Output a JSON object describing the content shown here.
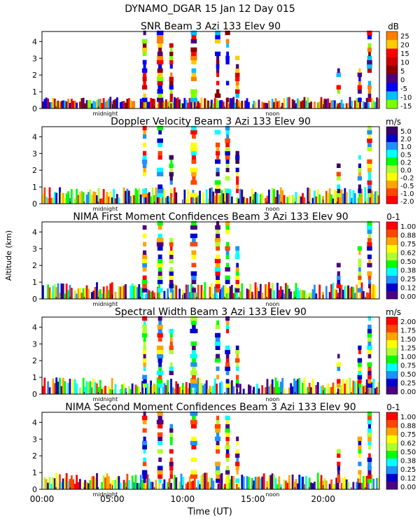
{
  "header": {
    "title": "DYNAMO_DGAR  15 Jan 12 Day 015"
  },
  "x_axis": {
    "label": "Time (UT)",
    "tick_labels": [
      "00:00",
      "05:00",
      "10:00",
      "15:00",
      "20:00"
    ],
    "markers": [
      "midnight",
      "noon"
    ]
  },
  "y_axis": {
    "label": "Altitude (km)",
    "tick_labels": [
      "0",
      "1",
      "2",
      "3",
      "4"
    ]
  },
  "chart_data": [
    {
      "type": "heatmap",
      "title": "SNR Beam 3 Azi 133 Elev 90",
      "units": "dB",
      "xlabel": "Time (UT)",
      "ylabel": "Altitude (km)",
      "xlim": [
        0,
        24
      ],
      "ylim": [
        0,
        4.6
      ],
      "colorbar_ticks": [
        "25",
        "20",
        "15",
        "10",
        "5",
        "0",
        "-5",
        "-10",
        "-15"
      ],
      "colorbar_colors": [
        "#ff7f00",
        "#ffcc00",
        "#ff0000",
        "#cc0000",
        "#8b0000",
        "#4b0082",
        "#0000ff",
        "#00bfff",
        "#7fff00"
      ]
    },
    {
      "type": "heatmap",
      "title": "Doppler Velocity Beam 3 Azi 133 Elev 90",
      "units": "m/s",
      "xlabel": "Time (UT)",
      "ylabel": "Altitude (km)",
      "xlim": [
        0,
        24
      ],
      "ylim": [
        0,
        4.6
      ],
      "colorbar_ticks": [
        "5.0",
        "2.0",
        "1.0",
        "0.5",
        "0.2",
        "0.0",
        "-0.2",
        "-0.5",
        "-1.0",
        "-2.0"
      ],
      "colorbar_colors": [
        "#3a0066",
        "#0000cc",
        "#1e90ff",
        "#00ffff",
        "#00ff00",
        "#adff2f",
        "#ffff00",
        "#ffa500",
        "#ff4500",
        "#ff0000"
      ]
    },
    {
      "type": "heatmap",
      "title": "NIMA First Moment Confidences Beam 3 Azi 133 Elev 90",
      "units": "0-1",
      "xlabel": "Time (UT)",
      "ylabel": "Altitude (km)",
      "xlim": [
        0,
        24
      ],
      "ylim": [
        0,
        4.6
      ],
      "colorbar_ticks": [
        "1.00",
        "0.88",
        "0.75",
        "0.62",
        "0.50",
        "0.38",
        "0.25",
        "0.12",
        "0.00"
      ],
      "colorbar_colors": [
        "#ff0000",
        "#ff4500",
        "#ffa500",
        "#ffff00",
        "#adff2f",
        "#00ff00",
        "#00ffff",
        "#1e90ff",
        "#0000cc",
        "#4b0082"
      ]
    },
    {
      "type": "heatmap",
      "title": "Spectral Width Beam 3 Azi 133 Elev 90",
      "units": "m/s",
      "xlabel": "Time (UT)",
      "ylabel": "Altitude (km)",
      "xlim": [
        0,
        24
      ],
      "ylim": [
        0,
        4.6
      ],
      "colorbar_ticks": [
        "2.00",
        "1.75",
        "1.50",
        "1.25",
        "1.00",
        "0.75",
        "0.50",
        "0.25",
        "0.00"
      ],
      "colorbar_colors": [
        "#ff0000",
        "#ff4500",
        "#ffa500",
        "#ffff00",
        "#adff2f",
        "#00ff00",
        "#00ffff",
        "#1e90ff",
        "#0000cc",
        "#4b0082"
      ]
    },
    {
      "type": "heatmap",
      "title": "NIMA Second Moment Confidences Beam 3 Azi 133 Elev 90",
      "units": "0-1",
      "xlabel": "Time (UT)",
      "ylabel": "Altitude (km)",
      "xlim": [
        0,
        24
      ],
      "ylim": [
        0,
        4.6
      ],
      "colorbar_ticks": [
        "1.00",
        "0.88",
        "0.75",
        "0.62",
        "0.50",
        "0.38",
        "0.25",
        "0.12",
        "0.00"
      ],
      "colorbar_colors": [
        "#ff0000",
        "#ff4500",
        "#ffa500",
        "#ffff00",
        "#adff2f",
        "#00ff00",
        "#00ffff",
        "#1e90ff",
        "#0000cc",
        "#4b0082"
      ]
    }
  ]
}
